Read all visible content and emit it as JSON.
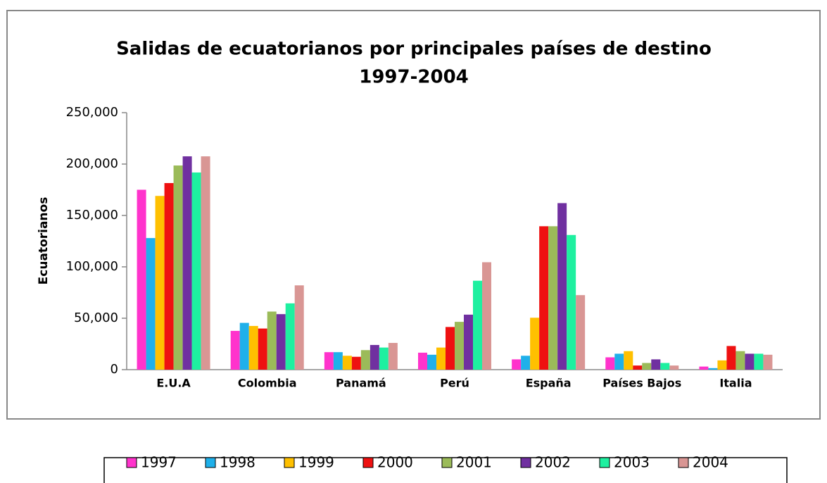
{
  "chart_data": {
    "type": "bar",
    "title": "Salidas de ecuatorianos por principales países de destino",
    "subtitle": "1997-2004",
    "y_label": "Ecuatorianos",
    "categories": [
      "E.U.A",
      "Colombia",
      "Panamá",
      "Perú",
      "España",
      "Países Bajos",
      "Italia"
    ],
    "ylim": [
      0,
      250000
    ],
    "yticks": [
      {
        "value": 0,
        "label": "0"
      },
      {
        "value": 50000,
        "label": "50,000"
      },
      {
        "value": 100000,
        "label": "100,000"
      },
      {
        "value": 150000,
        "label": "150,000"
      },
      {
        "value": 200000,
        "label": "200,000"
      },
      {
        "value": 250000,
        "label": "250,000"
      }
    ],
    "legend": "bottom",
    "series": [
      {
        "name": "1997",
        "color": "#ff33cc",
        "values": [
          175000,
          37700,
          17000,
          16500,
          10000,
          12000,
          3000
        ]
      },
      {
        "name": "1998",
        "color": "#1fb0ea",
        "values": [
          128000,
          45500,
          17000,
          14500,
          13500,
          15500,
          1500
        ]
      },
      {
        "name": "1999",
        "color": "#ffc000",
        "values": [
          169000,
          42500,
          13500,
          21500,
          50500,
          18000,
          9000
        ]
      },
      {
        "name": "2000",
        "color": "#ee1111",
        "values": [
          181500,
          40000,
          12500,
          41500,
          139500,
          4000,
          23000
        ]
      },
      {
        "name": "2001",
        "color": "#9bbb59",
        "values": [
          198600,
          56500,
          19000,
          46500,
          139500,
          6500,
          18000
        ]
      },
      {
        "name": "2002",
        "color": "#7030a0",
        "values": [
          207500,
          54000,
          24000,
          53500,
          162000,
          10000,
          15500
        ]
      },
      {
        "name": "2003",
        "color": "#1ef0a0",
        "values": [
          191800,
          64500,
          21500,
          86500,
          131000,
          6500,
          15500
        ]
      },
      {
        "name": "2004",
        "color": "#d99694",
        "values": [
          207500,
          82000,
          26000,
          104500,
          72500,
          4000,
          14500
        ]
      }
    ]
  }
}
